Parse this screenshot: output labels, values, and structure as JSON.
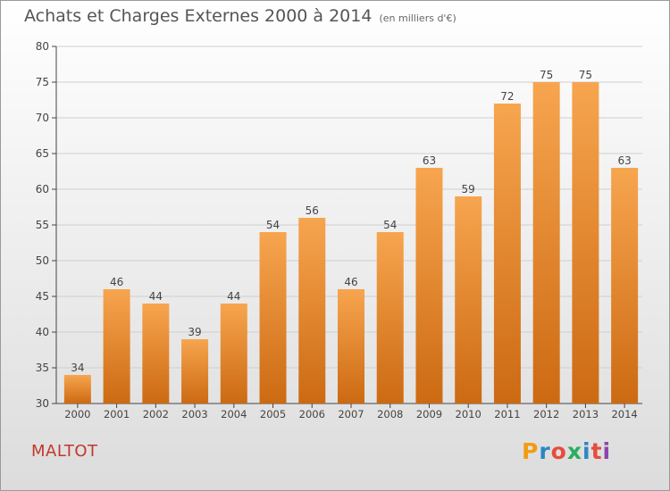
{
  "header": {
    "title": "Achats et Charges Externes 2000 à 2014",
    "subtitle": "(en milliers d'€)"
  },
  "footer": {
    "commune": "MALTOT",
    "logo_text": "Proxiti",
    "logo_colors": [
      "#f39c12",
      "#2e86c1",
      "#e74c3c",
      "#27ae60",
      "#2e86c1",
      "#e74c3c",
      "#8e44ad"
    ]
  },
  "chart_data": {
    "type": "bar",
    "categories": [
      "2000",
      "2001",
      "2002",
      "2003",
      "2004",
      "2005",
      "2006",
      "2007",
      "2008",
      "2009",
      "2010",
      "2011",
      "2012",
      "2013",
      "2014"
    ],
    "values": [
      34,
      46,
      44,
      39,
      44,
      54,
      56,
      46,
      54,
      63,
      59,
      72,
      75,
      75,
      63
    ],
    "ylim": [
      30,
      80
    ],
    "yticks": [
      30,
      35,
      40,
      45,
      50,
      55,
      60,
      65,
      70,
      75,
      80
    ],
    "grid": true,
    "bar_color_top": "#f7a54f",
    "bar_color_bottom": "#cc6a12"
  }
}
